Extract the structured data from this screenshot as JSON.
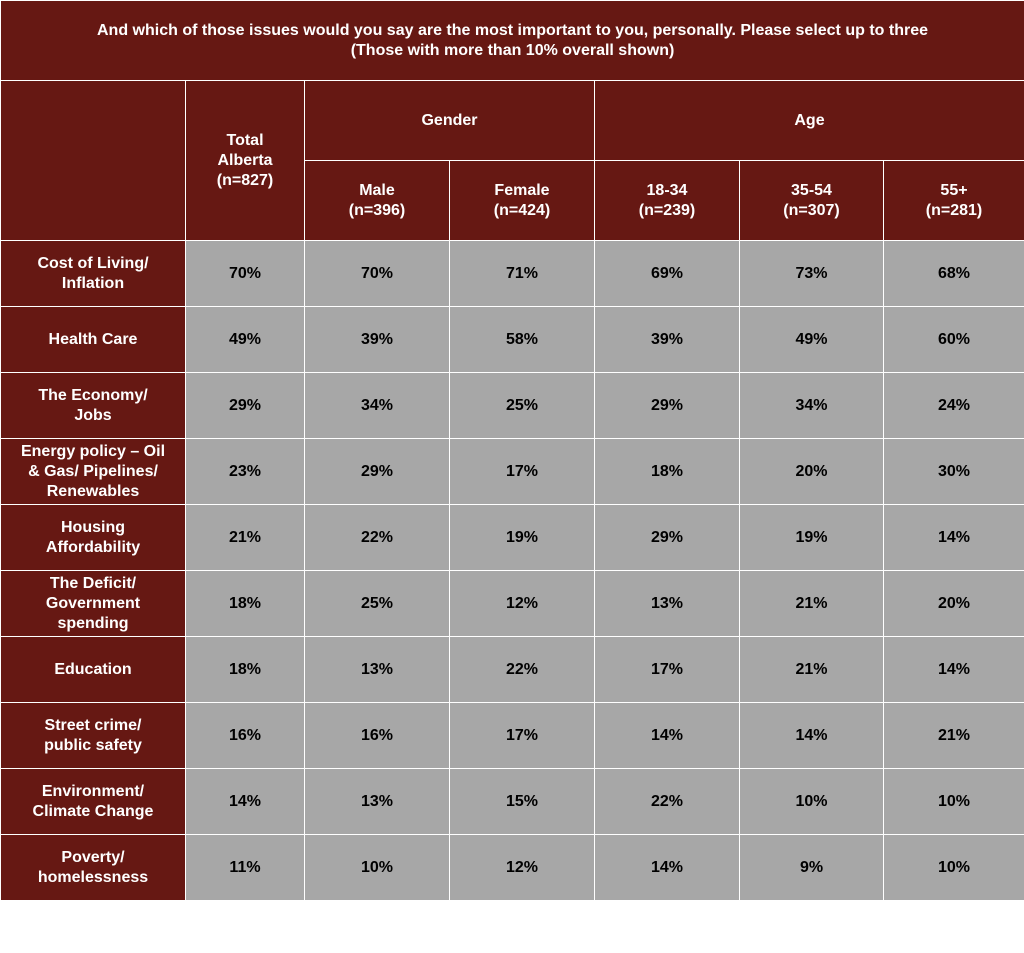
{
  "chart_data": {
    "type": "table",
    "title_line1": "And which of those issues would you say are the most important to you, personally. Please select up to three",
    "title_line2": "(Those with more than 10% overall shown)",
    "header": {
      "total_line1": "Total",
      "total_line2": "Alberta",
      "total_line3": "(n=827)",
      "groups": [
        {
          "label": "Gender",
          "columns": [
            {
              "line1": "Male",
              "line2": "(n=396)"
            },
            {
              "line1": "Female",
              "line2": "(n=424)"
            }
          ]
        },
        {
          "label": "Age",
          "columns": [
            {
              "line1": "18-34",
              "line2": "(n=239)"
            },
            {
              "line1": "35-54",
              "line2": "(n=307)"
            },
            {
              "line1": "55+",
              "line2": "(n=281)"
            }
          ]
        }
      ]
    },
    "rows": [
      {
        "label": [
          "Cost of Living/",
          "Inflation"
        ],
        "values": [
          "70%",
          "70%",
          "71%",
          "69%",
          "73%",
          "68%"
        ]
      },
      {
        "label": [
          "Health Care"
        ],
        "values": [
          "49%",
          "39%",
          "58%",
          "39%",
          "49%",
          "60%"
        ]
      },
      {
        "label": [
          "The Economy/",
          "Jobs"
        ],
        "values": [
          "29%",
          "34%",
          "25%",
          "29%",
          "34%",
          "24%"
        ]
      },
      {
        "label": [
          "Energy policy – Oil",
          "& Gas/ Pipelines/",
          "Renewables"
        ],
        "values": [
          "23%",
          "29%",
          "17%",
          "18%",
          "20%",
          "30%"
        ]
      },
      {
        "label": [
          "Housing",
          "Affordability"
        ],
        "values": [
          "21%",
          "22%",
          "19%",
          "29%",
          "19%",
          "14%"
        ]
      },
      {
        "label": [
          "The Deficit/",
          "Government",
          "spending"
        ],
        "values": [
          "18%",
          "25%",
          "12%",
          "13%",
          "21%",
          "20%"
        ]
      },
      {
        "label": [
          "Education"
        ],
        "values": [
          "18%",
          "13%",
          "22%",
          "17%",
          "21%",
          "14%"
        ]
      },
      {
        "label": [
          "Street crime/",
          "public safety"
        ],
        "values": [
          "16%",
          "16%",
          "17%",
          "14%",
          "14%",
          "21%"
        ]
      },
      {
        "label": [
          "Environment/",
          "Climate Change"
        ],
        "values": [
          "14%",
          "13%",
          "15%",
          "22%",
          "10%",
          "10%"
        ]
      },
      {
        "label": [
          "Poverty/",
          "homelessness"
        ],
        "values": [
          "11%",
          "10%",
          "12%",
          "14%",
          "9%",
          "10%"
        ]
      }
    ]
  }
}
